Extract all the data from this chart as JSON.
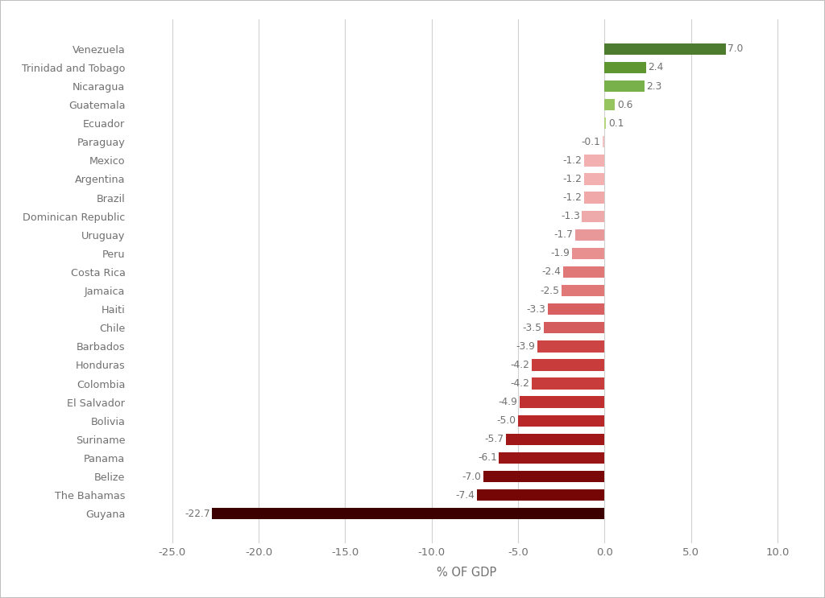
{
  "countries": [
    "Venezuela",
    "Trinidad and Tobago",
    "Nicaragua",
    "Guatemala",
    "Ecuador",
    "Paraguay",
    "Mexico",
    "Argentina",
    "Brazil",
    "Dominican Republic",
    "Uruguay",
    "Peru",
    "Costa Rica",
    "Jamaica",
    "Haiti",
    "Chile",
    "Barbados",
    "Honduras",
    "Colombia",
    "El Salvador",
    "Bolivia",
    "Suriname",
    "Panama",
    "Belize",
    "The Bahamas",
    "Guyana"
  ],
  "values": [
    7.0,
    2.4,
    2.3,
    0.6,
    0.1,
    -0.1,
    -1.2,
    -1.2,
    -1.2,
    -1.3,
    -1.7,
    -1.9,
    -2.4,
    -2.5,
    -3.3,
    -3.5,
    -3.9,
    -4.2,
    -4.2,
    -4.9,
    -5.0,
    -5.7,
    -6.1,
    -7.0,
    -7.4,
    -22.7
  ],
  "bar_colors": [
    "#4e7c2e",
    "#5f9632",
    "#78b04a",
    "#96c45f",
    "#b5d47e",
    "#f2c4c4",
    "#f2b0b0",
    "#f2b0b0",
    "#f0a8a8",
    "#eeaaaa",
    "#e89898",
    "#e89090",
    "#e07878",
    "#e07878",
    "#d96060",
    "#d45c5c",
    "#cc4444",
    "#c83c3c",
    "#c83c3c",
    "#c03030",
    "#b82828",
    "#a01818",
    "#9a1515",
    "#7a0808",
    "#760606",
    "#3d0000"
  ],
  "xlabel": "% OF GDP",
  "xlim": [
    -27.5,
    11.5
  ],
  "xticks": [
    -25.0,
    -20.0,
    -15.0,
    -10.0,
    -5.0,
    0.0,
    5.0,
    10.0
  ],
  "background_color": "#ffffff",
  "plot_bg_color": "#ffffff",
  "grid_color": "#d0d0d0",
  "bar_height": 0.62,
  "label_fontsize": 9.2,
  "tick_fontsize": 9.5,
  "xlabel_fontsize": 10.5,
  "value_fontsize": 8.8
}
